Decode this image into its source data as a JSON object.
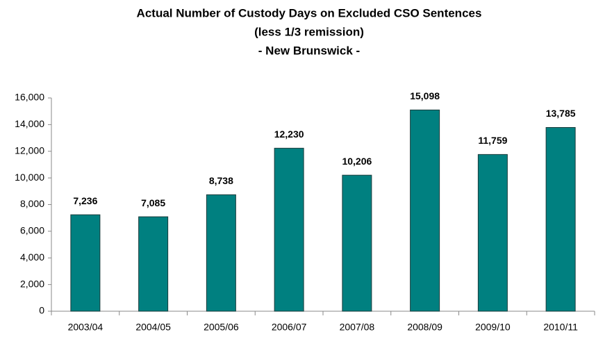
{
  "chart_data": {
    "type": "bar",
    "title": [
      "Actual Number of Custody Days on Excluded CSO Sentences",
      "(less 1/3 remission)",
      "- New Brunswick -"
    ],
    "categories": [
      "2003/04",
      "2004/05",
      "2005/06",
      "2006/07",
      "2007/08",
      "2008/09",
      "2009/10",
      "2010/11"
    ],
    "values": [
      7236,
      7085,
      8738,
      12230,
      10206,
      15098,
      11759,
      13785
    ],
    "value_labels": [
      "7,236",
      "7,085",
      "8,738",
      "12,230",
      "10,206",
      "15,098",
      "11,759",
      "13,785"
    ],
    "color": "#008080",
    "ylim": [
      0,
      16000
    ],
    "yticks": [
      0,
      {
        "value": 2000,
        "label": "2,000"
      },
      {
        "value": 4000,
        "label": "4,000"
      },
      {
        "value": 6000,
        "label": "6,000"
      },
      {
        "value": 8000,
        "label": "8,000"
      },
      {
        "value": 10000,
        "label": "10,000"
      },
      {
        "value": 12000,
        "label": "12,000"
      },
      {
        "value": 14000,
        "label": "14,000"
      },
      {
        "value": 16000,
        "label": "16,000"
      }
    ],
    "grid": false
  }
}
